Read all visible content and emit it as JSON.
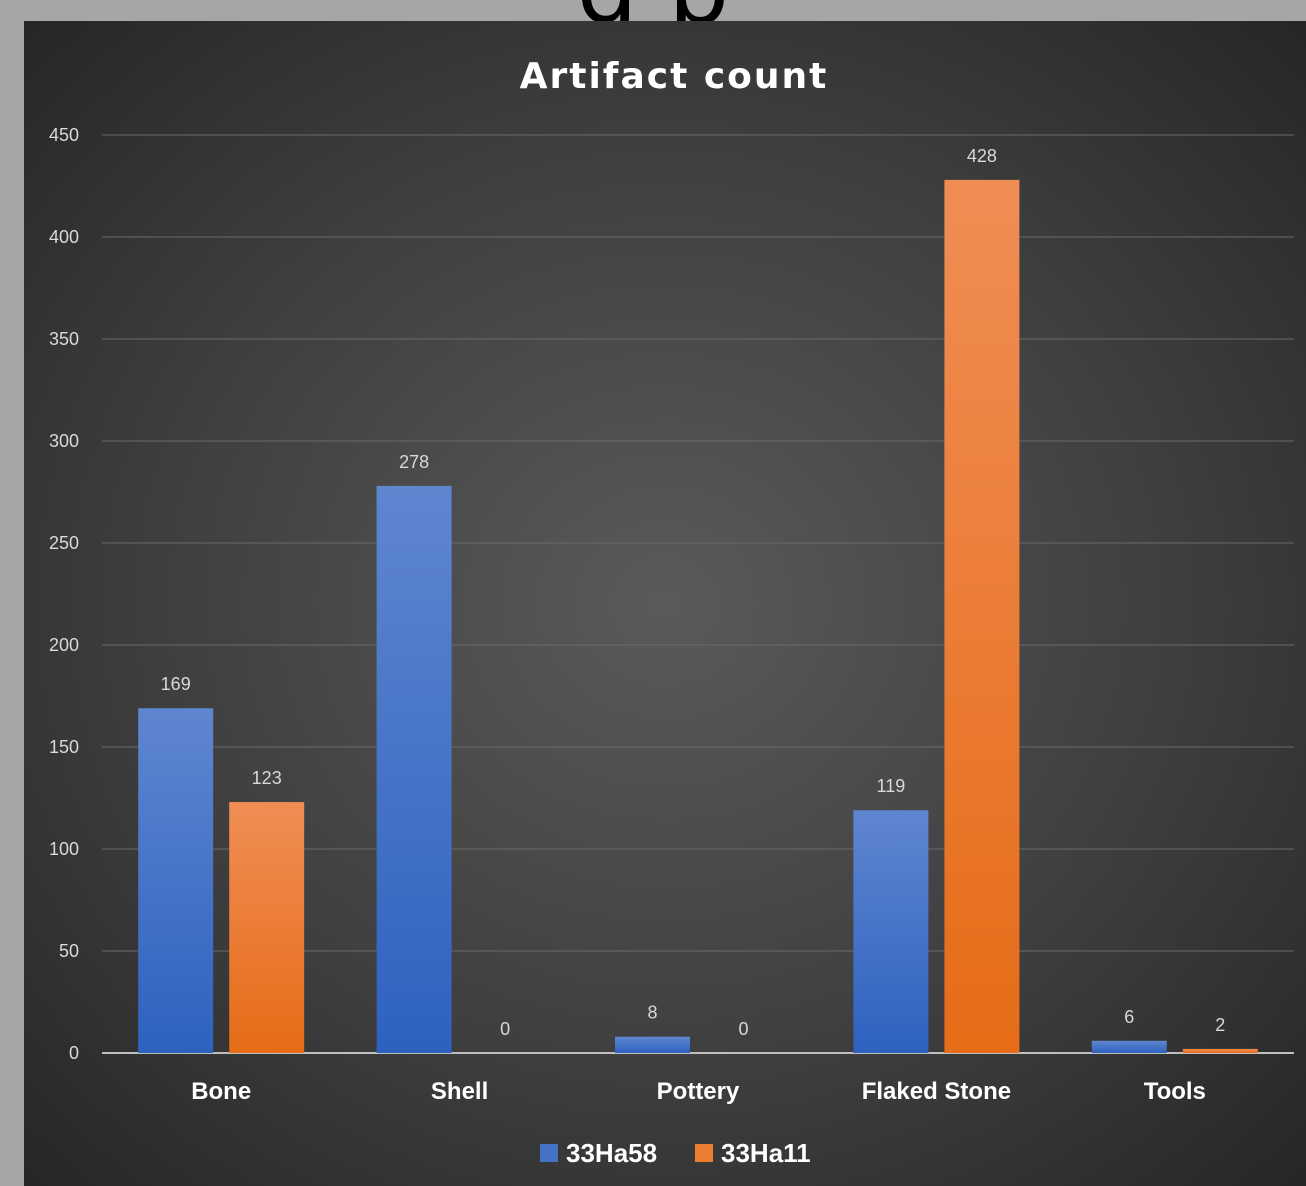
{
  "page_heading_fragment": "g                p",
  "chart_data": {
    "type": "bar",
    "title": "Artifact count",
    "xlabel": "",
    "ylabel": "",
    "categories": [
      "Bone",
      "Shell",
      "Pottery",
      "Flaked Stone",
      "Tools"
    ],
    "series": [
      {
        "name": "33Ha58",
        "values": [
          169,
          278,
          8,
          119,
          6
        ],
        "color": "#4472c4"
      },
      {
        "name": "33Ha11",
        "values": [
          123,
          0,
          0,
          428,
          2
        ],
        "color": "#ed7d31"
      }
    ],
    "ylim": [
      0,
      450
    ],
    "yticks": [
      0,
      50,
      100,
      150,
      200,
      250,
      300,
      350,
      400,
      450
    ],
    "grid": true,
    "legend_position": "bottom",
    "data_labels": true
  }
}
